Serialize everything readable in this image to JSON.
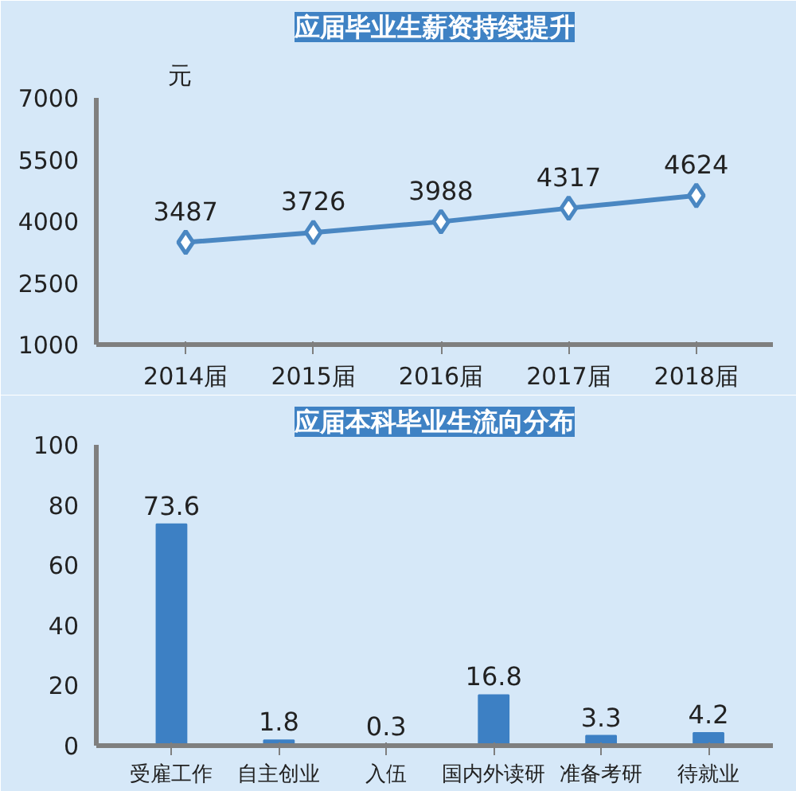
{
  "chart_data": [
    {
      "type": "line",
      "title": "应届毕业生薪资持续提升",
      "ylabel": "元",
      "categories": [
        "2014届",
        "2015届",
        "2016届",
        "2017届",
        "2018届"
      ],
      "series": [
        {
          "color": "#4a87c2",
          "values": [
            3487,
            3726,
            3988,
            4317,
            4624
          ]
        }
      ],
      "ylim": [
        1000,
        7000
      ],
      "yticks": [
        1000,
        2500,
        4000,
        5500,
        7000
      ],
      "marker": "diamond",
      "data_labels": true,
      "grid": false
    },
    {
      "type": "bar",
      "title": "应届本科毕业生流向分布",
      "categories": [
        "受雇工作",
        "自主创业",
        "入伍",
        "国内外读研",
        "准备考研",
        "待就业"
      ],
      "series": [
        {
          "color": "#3d80c4",
          "values": [
            73.6,
            1.8,
            0.3,
            16.8,
            3.3,
            4.2
          ]
        }
      ],
      "ylim": [
        0,
        100
      ],
      "yticks": [
        0,
        20,
        40,
        60,
        80,
        100
      ],
      "data_labels": true,
      "grid": false
    }
  ]
}
